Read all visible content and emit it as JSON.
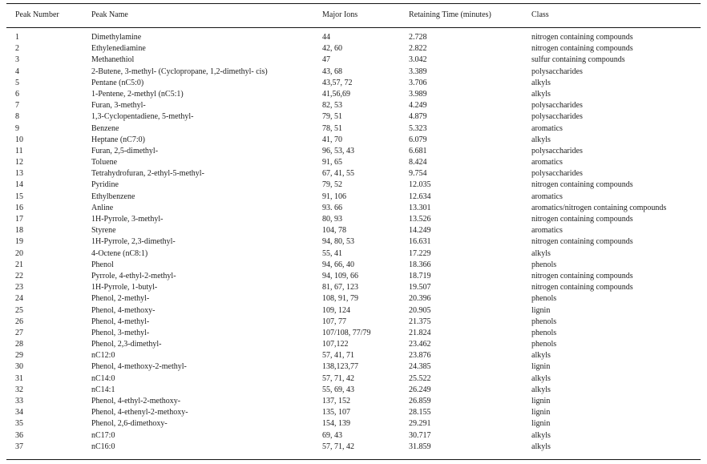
{
  "table": {
    "columns": [
      {
        "label": "Peak Number"
      },
      {
        "label": "Peak Name"
      },
      {
        "label": "Major Ions"
      },
      {
        "label": "Retaining Time (minutes)"
      },
      {
        "label": "Class"
      }
    ],
    "rows": [
      {
        "number": "1",
        "name": "Dimethylamine",
        "ions": "44",
        "time": "2.728",
        "class": "nitrogen containing compounds"
      },
      {
        "number": "2",
        "name": "Ethylenediamine",
        "ions": "42, 60",
        "time": "2.822",
        "class": "nitrogen containing compounds"
      },
      {
        "number": "3",
        "name": "Methanethiol",
        "ions": "47",
        "time": "3.042",
        "class": "sulfur containing compounds"
      },
      {
        "number": "4",
        "name": "2-Butene, 3-methyl- (Cyclopropane, 1,2-dimethyl- cis)",
        "ions": "43, 68",
        "time": "3.389",
        "class": "polysaccharides"
      },
      {
        "number": "5",
        "name": "Pentane (nC5:0)",
        "ions": "43,57, 72",
        "time": "3.706",
        "class": "alkyls"
      },
      {
        "number": "6",
        "name": "1-Pentene, 2-methyl (nC5:1)",
        "ions": "41,56,69",
        "time": "3.989",
        "class": "alkyls"
      },
      {
        "number": "7",
        "name": "Furan, 3-methyl-",
        "ions": "82, 53",
        "time": "4.249",
        "class": "polysaccharides"
      },
      {
        "number": "8",
        "name": "1,3-Cyclopentadiene, 5-methyl-",
        "ions": "79, 51",
        "time": "4.879",
        "class": "polysaccharides"
      },
      {
        "number": "9",
        "name": "Benzene",
        "ions": "78, 51",
        "time": "5.323",
        "class": "aromatics"
      },
      {
        "number": "10",
        "name": "Heptane (nC7:0)",
        "ions": "41, 70",
        "time": "6.079",
        "class": "alkyls"
      },
      {
        "number": "11",
        "name": "Furan, 2,5-dimethyl-",
        "ions": "96, 53, 43",
        "time": "6.681",
        "class": "polysaccharides"
      },
      {
        "number": "12",
        "name": "Toluene",
        "ions": "91, 65",
        "time": "8.424",
        "class": "aromatics"
      },
      {
        "number": "13",
        "name": "Tetrahydrofuran, 2-ethyl-5-methyl-",
        "ions": "67, 41, 55",
        "time": "9.754",
        "class": "polysaccharides"
      },
      {
        "number": "14",
        "name": "Pyridine",
        "ions": "79, 52",
        "time": "12.035",
        "class": "nitrogen containing compounds"
      },
      {
        "number": "15",
        "name": "Ethylbenzene",
        "ions": "91, 106",
        "time": "12.634",
        "class": "aromatics"
      },
      {
        "number": "16",
        "name": "Anline",
        "ions": "93. 66",
        "time": "13.301",
        "class": "aromatics/nitrogen containing compounds"
      },
      {
        "number": "17",
        "name": "1H-Pyrrole, 3-methyl-",
        "ions": "80, 93",
        "time": "13.526",
        "class": "nitrogen containing compounds"
      },
      {
        "number": "18",
        "name": "Styrene",
        "ions": "104, 78",
        "time": "14.249",
        "class": "aromatics"
      },
      {
        "number": "19",
        "name": "1H-Pyrrole, 2,3-dimethyl-",
        "ions": "94, 80, 53",
        "time": "16.631",
        "class": "nitrogen containing compounds"
      },
      {
        "number": "20",
        "name": "4-Octene (nC8:1)",
        "ions": "55, 41",
        "time": "17.229",
        "class": "alkyls"
      },
      {
        "number": "21",
        "name": "Phenol",
        "ions": "94, 66, 40",
        "time": "18.366",
        "class": "phenols"
      },
      {
        "number": "22",
        "name": "Pyrrole, 4-ethyl-2-methyl-",
        "ions": "94, 109, 66",
        "time": "18.719",
        "class": "nitrogen containing compounds"
      },
      {
        "number": "23",
        "name": "1H-Pyrrole, 1-butyl-",
        "ions": "81, 67, 123",
        "time": "19.507",
        "class": "nitrogen containing compounds"
      },
      {
        "number": "24",
        "name": "Phenol, 2-methyl-",
        "ions": "108, 91, 79",
        "time": "20.396",
        "class": "phenols"
      },
      {
        "number": "25",
        "name": "Phenol, 4-methoxy-",
        "ions": "109, 124",
        "time": "20.905",
        "class": "lignin"
      },
      {
        "number": "26",
        "name": "Phenol, 4-methyl-",
        "ions": "107, 77",
        "time": "21.375",
        "class": "phenols"
      },
      {
        "number": "27",
        "name": "Phenol, 3-methyl-",
        "ions": "107/108, 77/79",
        "time": "21.824",
        "class": "phenols"
      },
      {
        "number": "28",
        "name": "Phenol, 2,3-dimethyl-",
        "ions": "107,122",
        "time": "23.462",
        "class": "phenols"
      },
      {
        "number": "29",
        "name": "nC12:0",
        "ions": "57, 41, 71",
        "time": "23.876",
        "class": "alkyls"
      },
      {
        "number": "30",
        "name": "Phenol, 4-methoxy-2-methyl-",
        "ions": "138,123,77",
        "time": "24.385",
        "class": "lignin"
      },
      {
        "number": "31",
        "name": "nC14:0",
        "ions": "57, 71, 42",
        "time": "25.522",
        "class": "alkyls"
      },
      {
        "number": "32",
        "name": "nC14:1",
        "ions": "55, 69, 43",
        "time": "26.249",
        "class": "alkyls"
      },
      {
        "number": "33",
        "name": "Phenol, 4-ethyl-2-methoxy-",
        "ions": "137, 152",
        "time": "26.859",
        "class": "lignin"
      },
      {
        "number": "34",
        "name": "Phenol, 4-ethenyl-2-methoxy-",
        "ions": "135, 107",
        "time": "28.155",
        "class": "lignin"
      },
      {
        "number": "35",
        "name": "Phenol, 2,6-dimethoxy-",
        "ions": "154, 139",
        "time": "29.291",
        "class": "lignin"
      },
      {
        "number": "36",
        "name": "nC17:0",
        "ions": "69, 43",
        "time": "30.717",
        "class": "alkyls"
      },
      {
        "number": "37",
        "name": "nC16:0",
        "ions": "57, 71, 42",
        "time": "31.859",
        "class": "alkyls"
      }
    ]
  }
}
